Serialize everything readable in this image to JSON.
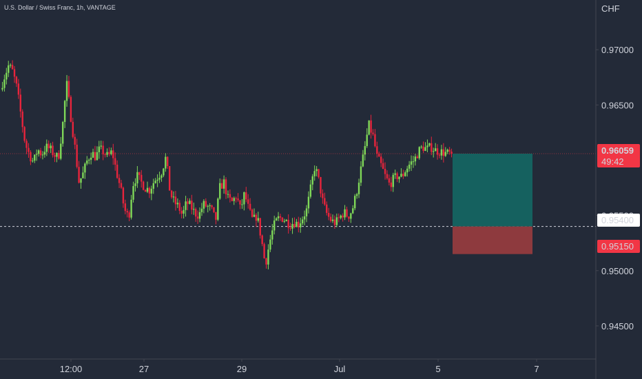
{
  "header": {
    "symbol_title": "U.S. Dollar / Swiss Franc, 1h, VANTAGE"
  },
  "price_axis": {
    "currency": "CHF",
    "tick_labels": [
      "0.97000",
      "0.96500",
      "0.95500",
      "0.95000",
      "0.94500"
    ],
    "tick_values": [
      0.97,
      0.965,
      0.955,
      0.95,
      0.945
    ]
  },
  "time_axis": {
    "tick_labels": [
      "12:00",
      "27",
      "29",
      "Jul",
      "5",
      "7"
    ]
  },
  "markers": {
    "current_price": {
      "label": "0.96059",
      "value": 0.96059,
      "countdown": "49:42",
      "color": "#f23645"
    },
    "entry": {
      "label": "0.95400",
      "value": 0.954,
      "color": "#ffffff"
    },
    "stop": {
      "label": "0.95150",
      "value": 0.9515,
      "color": "#f23645"
    },
    "target": {
      "value": 0.96059
    }
  },
  "colors": {
    "background": "#232a38",
    "up": "#7fd858",
    "down": "#e8243c",
    "profit_zone": "#15615f",
    "loss_zone": "#8e3a3e",
    "axis_line": "#434651"
  },
  "chart_data": {
    "type": "candlestick",
    "symbol": "U.S. Dollar / Swiss Franc",
    "interval": "1h",
    "source": "VANTAGE",
    "ylim": [
      0.942,
      0.9745
    ],
    "x_ticks": [
      "12:00",
      "27",
      "29",
      "Jul",
      "5",
      "7"
    ],
    "y_ticks": [
      0.97,
      0.965,
      0.955,
      0.95,
      0.945
    ],
    "current_price": 0.96059,
    "position": {
      "type": "long",
      "entry": 0.954,
      "target": 0.96059,
      "stop": 0.9515
    },
    "close_path": [
      0.9664,
      0.9676,
      0.9686,
      0.968,
      0.9665,
      0.964,
      0.9615,
      0.9605,
      0.9598,
      0.961,
      0.9605,
      0.9612,
      0.961,
      0.9605,
      0.9602,
      0.963,
      0.967,
      0.964,
      0.9612,
      0.958,
      0.9588,
      0.96,
      0.9607,
      0.9603,
      0.961,
      0.9607,
      0.9603,
      0.9608,
      0.959,
      0.9575,
      0.9555,
      0.9548,
      0.9578,
      0.9586,
      0.958,
      0.9575,
      0.9573,
      0.958,
      0.9585,
      0.959,
      0.9603,
      0.957,
      0.9562,
      0.9558,
      0.955,
      0.9562,
      0.9558,
      0.9552,
      0.955,
      0.956,
      0.9558,
      0.9555,
      0.9545,
      0.9575,
      0.958,
      0.9565,
      0.9562,
      0.9568,
      0.9555,
      0.957,
      0.9555,
      0.9545,
      0.955,
      0.953,
      0.9505,
      0.9525,
      0.954,
      0.9547,
      0.9548,
      0.9545,
      0.9542,
      0.9544,
      0.9542,
      0.9548,
      0.9555,
      0.9575,
      0.9595,
      0.958,
      0.956,
      0.955,
      0.9545,
      0.9543,
      0.9548,
      0.9553,
      0.9549,
      0.9555,
      0.957,
      0.959,
      0.961,
      0.9632,
      0.9622,
      0.9603,
      0.9595,
      0.9585,
      0.9578,
      0.9583,
      0.9586,
      0.9585,
      0.9592,
      0.9597,
      0.96,
      0.9608,
      0.9612,
      0.961,
      0.9612,
      0.9609,
      0.9608,
      0.9607,
      0.9606,
      0.96059
    ]
  }
}
